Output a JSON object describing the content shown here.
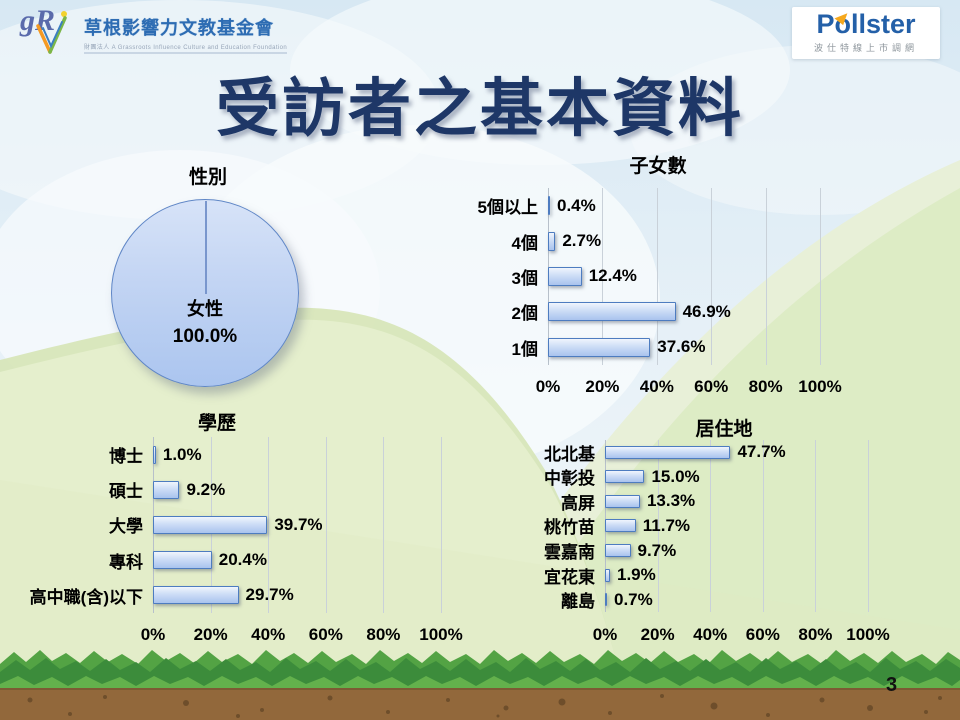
{
  "slide": {
    "title": "受訪者之基本資料",
    "page_number": "3"
  },
  "logos": {
    "grassroots": {
      "mark": "gR",
      "name": "草根影響力文教基金會",
      "subtext": "財團法人 A Grassroots Influence Culture and Education Foundation"
    },
    "pollster": {
      "name": "Pollster",
      "tagline": "波仕特線上市調網"
    }
  },
  "colors": {
    "title_navy": "#1e3767",
    "bar_border": "#4d7cc0",
    "bar_fill_top": "#f0f5fd",
    "bar_fill_bottom": "#a9c3ee",
    "pollster_blue": "#2460a8",
    "pollster_orange": "#f6a81c",
    "hill_green": "#e5efcd",
    "grass_green": "#3c8c3b",
    "soil_brown": "#92683b"
  },
  "chart_data": [
    {
      "type": "pie",
      "title": "性別",
      "categories": [
        "女性"
      ],
      "values": [
        100.0
      ],
      "center_label": "女性",
      "center_value": "100.0%"
    },
    {
      "type": "bar",
      "orientation": "horizontal",
      "title": "子女數",
      "categories": [
        "5個以上",
        "4個",
        "3個",
        "2個",
        "1個"
      ],
      "values": [
        0.4,
        2.7,
        12.4,
        46.9,
        37.6
      ],
      "value_labels": [
        "0.4%",
        "2.7%",
        "12.4%",
        "46.9%",
        "37.6%"
      ],
      "xlim": [
        0,
        100
      ],
      "ticks": [
        "0%",
        "20%",
        "40%",
        "60%",
        "80%",
        "100%"
      ],
      "grid": true
    },
    {
      "type": "bar",
      "orientation": "horizontal",
      "title": "學歷",
      "categories": [
        "博士",
        "碩士",
        "大學",
        "專科",
        "高中職(含)以下"
      ],
      "values": [
        1.0,
        9.2,
        39.7,
        20.4,
        29.7
      ],
      "value_labels": [
        "1.0%",
        "9.2%",
        "39.7%",
        "20.4%",
        "29.7%"
      ],
      "xlim": [
        0,
        100
      ],
      "ticks": [
        "0%",
        "20%",
        "40%",
        "60%",
        "80%",
        "100%"
      ],
      "grid": true
    },
    {
      "type": "bar",
      "orientation": "horizontal",
      "title": "居住地",
      "categories": [
        "北北基",
        "中彰投",
        "高屏",
        "桃竹苗",
        "雲嘉南",
        "宜花東",
        "離島"
      ],
      "values": [
        47.7,
        15.0,
        13.3,
        11.7,
        9.7,
        1.9,
        0.7
      ],
      "value_labels": [
        "47.7%",
        "15.0%",
        "13.3%",
        "11.7%",
        "9.7%",
        "1.9%",
        "0.7%"
      ],
      "xlim": [
        0,
        100
      ],
      "ticks": [
        "0%",
        "20%",
        "40%",
        "60%",
        "80%",
        "100%"
      ],
      "grid": true
    }
  ]
}
